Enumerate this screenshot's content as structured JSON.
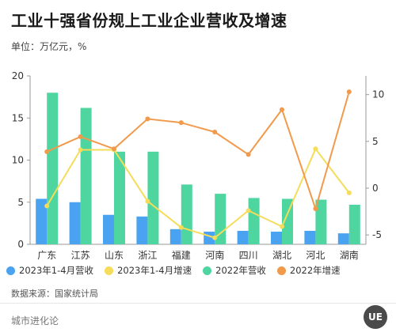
{
  "header": {
    "title": "工业十强省份规上工业企业营收及增速",
    "unit": "单位：万亿元，%"
  },
  "legend": [
    {
      "label": "2023年1-4月营收",
      "color": "#4aa3f0"
    },
    {
      "label": "2023年1-4月增速",
      "color": "#f5dc5a"
    },
    {
      "label": "2022年营收",
      "color": "#4fd5a0"
    },
    {
      "label": "2022年增速",
      "color": "#f29a4b"
    }
  ],
  "footer": {
    "source": "数据来源：国家统计局",
    "brand": "城市进化论",
    "logo_text": "UE"
  },
  "chart_data": {
    "type": "bar",
    "categories": [
      "广东",
      "江苏",
      "山东",
      "浙江",
      "福建",
      "河南",
      "四川",
      "湖北",
      "河北",
      "湖南"
    ],
    "y_left": {
      "ylim": [
        0,
        20
      ],
      "ticks": [
        "0",
        "5",
        "10",
        "15",
        "20"
      ]
    },
    "y_right": {
      "ylim": [
        -6,
        12
      ],
      "ticks": [
        "-5",
        "0",
        "5",
        "10"
      ]
    },
    "series": [
      {
        "name": "2023年1-4月营收",
        "type": "bar",
        "axis": "left",
        "color": "#4aa3f0",
        "values": [
          5.4,
          5.0,
          3.5,
          3.3,
          1.8,
          1.5,
          1.6,
          1.5,
          1.6,
          1.3
        ]
      },
      {
        "name": "2022年营收",
        "type": "bar",
        "axis": "left",
        "color": "#4fd5a0",
        "values": [
          18.0,
          16.2,
          11.0,
          11.0,
          7.1,
          6.0,
          5.5,
          5.4,
          5.3,
          4.7
        ]
      },
      {
        "name": "2023年1-4月增速",
        "type": "line",
        "axis": "right",
        "color": "#f5dc5a",
        "values": [
          -1.9,
          4.1,
          4.1,
          -1.4,
          -4.2,
          -5.3,
          -2.4,
          -4.1,
          4.2,
          -0.5
        ]
      },
      {
        "name": "2022年增速",
        "type": "line",
        "axis": "right",
        "color": "#f29a4b",
        "values": [
          3.9,
          5.5,
          4.2,
          7.4,
          7.0,
          6.0,
          3.6,
          8.4,
          -2.2,
          10.3
        ]
      }
    ]
  }
}
